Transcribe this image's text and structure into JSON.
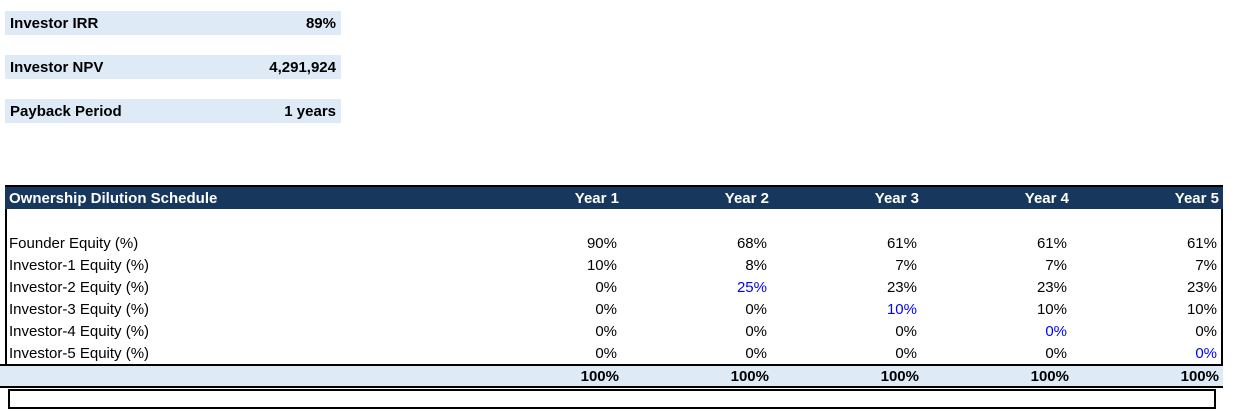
{
  "metrics": [
    {
      "label": "Investor IRR",
      "value": "89%"
    },
    {
      "label": "Investor NPV",
      "value": "4,291,924"
    },
    {
      "label": "Payback Period",
      "value": "1 years"
    }
  ],
  "table": {
    "title": "Ownership Dilution Schedule",
    "columns": [
      "Year 1",
      "Year 2",
      "Year 3",
      "Year 4",
      "Year 5"
    ],
    "rows": [
      {
        "label": "Founder Equity (%)",
        "values": [
          "90%",
          "68%",
          "61%",
          "61%",
          "61%"
        ],
        "blue_index": null
      },
      {
        "label": "Investor-1 Equity (%)",
        "values": [
          "10%",
          "8%",
          "7%",
          "7%",
          "7%"
        ],
        "blue_index": null
      },
      {
        "label": "Investor-2 Equity (%)",
        "values": [
          "0%",
          "25%",
          "23%",
          "23%",
          "23%"
        ],
        "blue_index": 1
      },
      {
        "label": "Investor-3 Equity (%)",
        "values": [
          "0%",
          "0%",
          "10%",
          "10%",
          "10%"
        ],
        "blue_index": 2
      },
      {
        "label": "Investor-4 Equity (%)",
        "values": [
          "0%",
          "0%",
          "0%",
          "0%",
          "0%"
        ],
        "blue_index": 3
      },
      {
        "label": "Investor-5 Equity (%)",
        "values": [
          "0%",
          "0%",
          "0%",
          "0%",
          "0%"
        ],
        "blue_index": 4
      }
    ],
    "total_row": {
      "values": [
        "100%",
        "100%",
        "100%",
        "100%",
        "100%"
      ]
    }
  },
  "colors": {
    "header_bg": "#17375D",
    "band_bg": "#DEEAF6",
    "blue_text": "#0000FF",
    "header_text": "#FFFFFF"
  }
}
